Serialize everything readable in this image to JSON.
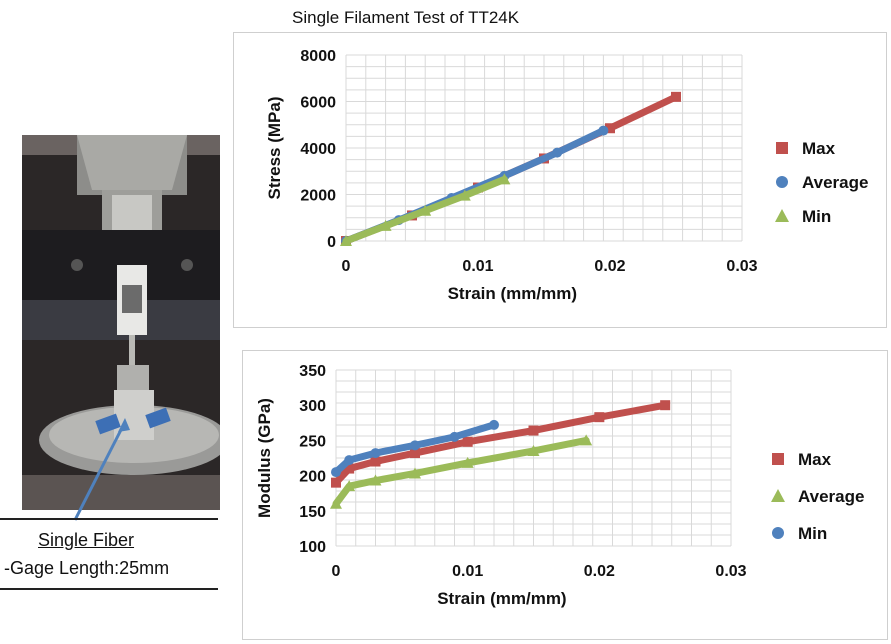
{
  "page": {
    "title": "Single Filament Test of TT24K",
    "caption_label": "Single Fiber",
    "caption_detail": "-Gage Length:25mm"
  },
  "colors": {
    "max": "#c0504d",
    "average": "#4f81bd",
    "min": "#9bbb59"
  },
  "chart_data": [
    {
      "type": "scatter",
      "xlabel": "Strain (mm/mm)",
      "ylabel": "Stress (MPa)",
      "xlim": [
        0,
        0.03
      ],
      "ylim": [
        0,
        8000
      ],
      "xticks": [
        "0",
        "0.01",
        "0.02",
        "0.03"
      ],
      "yticks": [
        "0",
        "2000",
        "4000",
        "6000",
        "8000"
      ],
      "grid": true,
      "legend_position": "right",
      "series": [
        {
          "name": "Max",
          "marker": "square",
          "color": "#c0504d",
          "x": [
            0,
            0.005,
            0.01,
            0.015,
            0.02,
            0.025
          ],
          "y": [
            0,
            1100,
            2300,
            3550,
            4850,
            6200
          ]
        },
        {
          "name": "Average",
          "marker": "circle",
          "color": "#4f81bd",
          "x": [
            0,
            0.004,
            0.008,
            0.012,
            0.016,
            0.0195
          ],
          "y": [
            0,
            900,
            1850,
            2800,
            3800,
            4750
          ]
        },
        {
          "name": "Min",
          "marker": "triangle",
          "color": "#9bbb59",
          "x": [
            0,
            0.003,
            0.006,
            0.009,
            0.012
          ],
          "y": [
            0,
            650,
            1300,
            1950,
            2650
          ]
        }
      ]
    },
    {
      "type": "scatter",
      "xlabel": "Strain (mm/mm)",
      "ylabel": "Modulus (GPa)",
      "xlim": [
        0,
        0.03
      ],
      "ylim": [
        100,
        350
      ],
      "xticks": [
        "0",
        "0.01",
        "0.02",
        "0.03"
      ],
      "yticks": [
        "100",
        "150",
        "200",
        "250",
        "300",
        "350"
      ],
      "grid": true,
      "legend_position": "right",
      "series": [
        {
          "name": "Max",
          "marker": "square",
          "color": "#c0504d",
          "x": [
            0,
            0.001,
            0.003,
            0.006,
            0.01,
            0.015,
            0.02,
            0.025
          ],
          "y": [
            190,
            210,
            220,
            232,
            248,
            264,
            283,
            300
          ]
        },
        {
          "name": "Average",
          "marker": "triangle",
          "color": "#9bbb59",
          "x": [
            0,
            0.001,
            0.003,
            0.006,
            0.01,
            0.015,
            0.019
          ],
          "y": [
            160,
            185,
            193,
            203,
            218,
            235,
            250
          ]
        },
        {
          "name": "Min",
          "marker": "circle",
          "color": "#4f81bd",
          "x": [
            0,
            0.001,
            0.003,
            0.006,
            0.009,
            0.012
          ],
          "y": [
            205,
            222,
            232,
            243,
            255,
            272
          ]
        }
      ]
    }
  ]
}
